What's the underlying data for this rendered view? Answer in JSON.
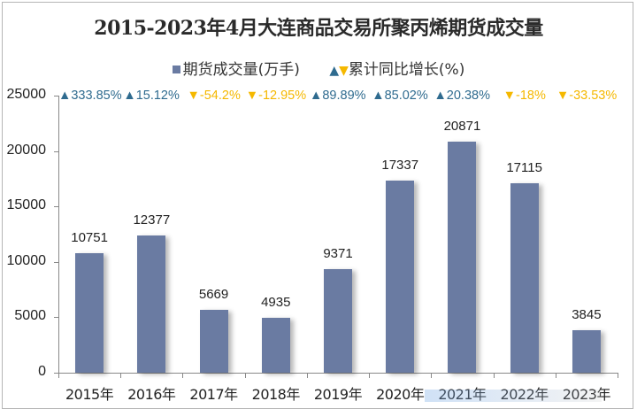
{
  "chart": {
    "title": "2015-2023年4月大连商品交易所聚丙烯期货成交量",
    "legend": {
      "series1": "期货成交量(万手)",
      "series2": "累计同比增长(%)"
    },
    "y_ticks": [
      "25000",
      "20000",
      "15000",
      "10000",
      "5000",
      "0"
    ],
    "colors": {
      "bar": "#6a7ba2",
      "up": "#2f6b8f",
      "down": "#f5b800"
    },
    "up_icon": "▲",
    "down_icon": "▼",
    "categories": [
      "2015年",
      "2016年",
      "2017年",
      "2018年",
      "2019年",
      "2020年",
      "2021年",
      "2022年",
      "2023年"
    ],
    "value_labels": [
      "10751",
      "12377",
      "5669",
      "4935",
      "9371",
      "17337",
      "20871",
      "17115",
      "3845"
    ],
    "growth_labels": [
      "333.85%",
      "15.12%",
      "-54.2%",
      "-12.95%",
      "89.89%",
      "85.02%",
      "20.38%",
      "-18%",
      "-33.53%"
    ]
  },
  "chart_data": {
    "type": "bar",
    "title": "2015-2023年4月大连商品交易所聚丙烯期货成交量",
    "xlabel": "",
    "ylabel": "",
    "ylim": [
      0,
      25000
    ],
    "yticks": [
      0,
      5000,
      10000,
      15000,
      20000,
      25000
    ],
    "grid": false,
    "legend_position": "top",
    "categories": [
      "2015年",
      "2016年",
      "2017年",
      "2018年",
      "2019年",
      "2020年",
      "2021年",
      "2022年",
      "2023年"
    ],
    "series": [
      {
        "name": "期货成交量(万手)",
        "type": "bar",
        "values": [
          10751,
          12377,
          5669,
          4935,
          9371,
          17337,
          20871,
          17115,
          3845
        ]
      },
      {
        "name": "累计同比增长(%)",
        "type": "annotation",
        "values": [
          333.85,
          15.12,
          -54.2,
          -12.95,
          89.89,
          85.02,
          20.38,
          -18,
          -33.53
        ]
      }
    ]
  }
}
